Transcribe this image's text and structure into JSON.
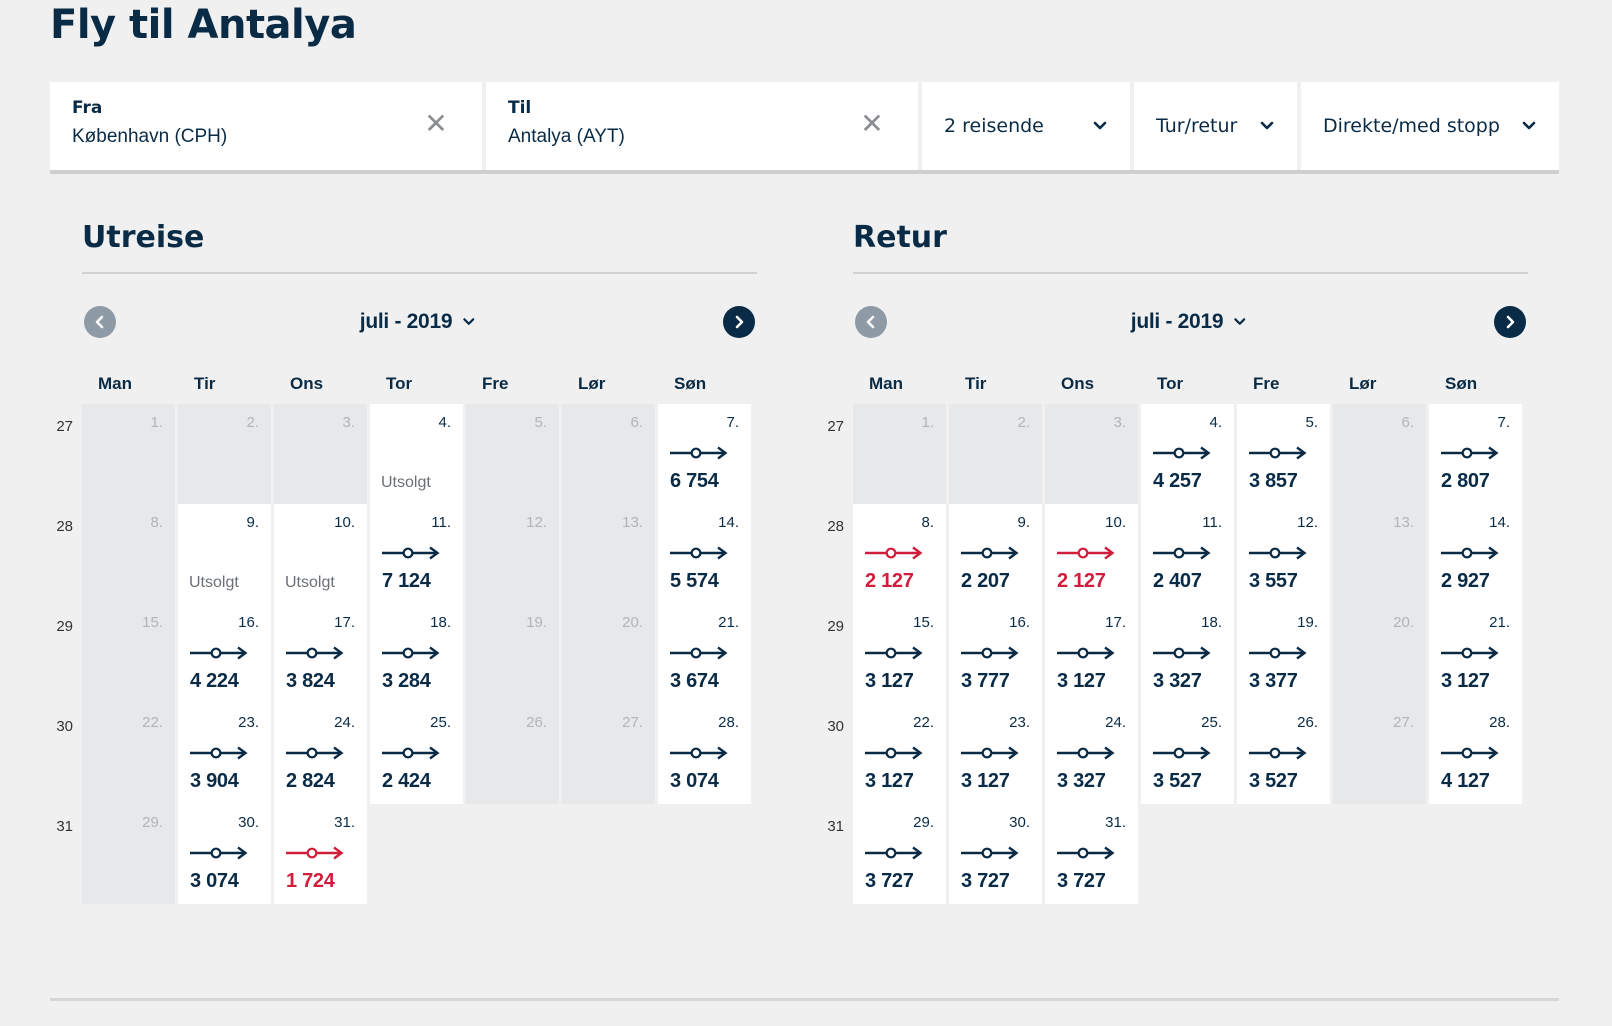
{
  "page": {
    "title": "Fly til Antalya"
  },
  "search": {
    "from": {
      "label": "Fra",
      "value": "København (CPH)"
    },
    "to": {
      "label": "Til",
      "value": "Antalya (AYT)"
    },
    "travellers": "2 reisende",
    "trip_type": "Tur/retur",
    "stops": "Direkte/med stopp"
  },
  "colors": {
    "navy": "#0a2b46",
    "cheapest": "#d21c3b",
    "unavailable": "#e7e8ea"
  },
  "icons": {
    "clear": "close-icon",
    "dropdown": "chevron-down-icon",
    "prev": "chevron-left-icon",
    "next": "chevron-right-icon",
    "flight": "flight-route-icon"
  },
  "weekdays": [
    "Man",
    "Tir",
    "Ons",
    "Tor",
    "Fre",
    "Lør",
    "Søn"
  ],
  "outbound": {
    "title": "Utreise",
    "month": "juli - 2019",
    "weeks": [
      {
        "week": "27",
        "days": [
          {
            "day": "1.",
            "status": "unavailable"
          },
          {
            "day": "2.",
            "status": "unavailable"
          },
          {
            "day": "3.",
            "status": "unavailable"
          },
          {
            "day": "4.",
            "status": "soldout",
            "label": "Utsolgt"
          },
          {
            "day": "5.",
            "status": "unavailable"
          },
          {
            "day": "6.",
            "status": "unavailable"
          },
          {
            "day": "7.",
            "status": "available",
            "price": "6 754"
          }
        ]
      },
      {
        "week": "28",
        "days": [
          {
            "day": "8.",
            "status": "unavailable"
          },
          {
            "day": "9.",
            "status": "soldout",
            "label": "Utsolgt"
          },
          {
            "day": "10.",
            "status": "soldout",
            "label": "Utsolgt"
          },
          {
            "day": "11.",
            "status": "available",
            "price": "7 124"
          },
          {
            "day": "12.",
            "status": "unavailable"
          },
          {
            "day": "13.",
            "status": "unavailable"
          },
          {
            "day": "14.",
            "status": "available",
            "price": "5 574"
          }
        ]
      },
      {
        "week": "29",
        "days": [
          {
            "day": "15.",
            "status": "unavailable"
          },
          {
            "day": "16.",
            "status": "available",
            "price": "4 224"
          },
          {
            "day": "17.",
            "status": "available",
            "price": "3 824"
          },
          {
            "day": "18.",
            "status": "available",
            "price": "3 284"
          },
          {
            "day": "19.",
            "status": "unavailable"
          },
          {
            "day": "20.",
            "status": "unavailable"
          },
          {
            "day": "21.",
            "status": "available",
            "price": "3 674"
          }
        ]
      },
      {
        "week": "30",
        "days": [
          {
            "day": "22.",
            "status": "unavailable"
          },
          {
            "day": "23.",
            "status": "available",
            "price": "3 904"
          },
          {
            "day": "24.",
            "status": "available",
            "price": "2 824"
          },
          {
            "day": "25.",
            "status": "available",
            "price": "2 424"
          },
          {
            "day": "26.",
            "status": "unavailable"
          },
          {
            "day": "27.",
            "status": "unavailable"
          },
          {
            "day": "28.",
            "status": "available",
            "price": "3 074"
          }
        ]
      },
      {
        "week": "31",
        "days": [
          {
            "day": "29.",
            "status": "unavailable"
          },
          {
            "day": "30.",
            "status": "available",
            "price": "3 074"
          },
          {
            "day": "31.",
            "status": "available",
            "price": "1 724",
            "cheapest": true
          },
          {
            "status": "empty"
          },
          {
            "status": "empty"
          },
          {
            "status": "empty"
          },
          {
            "status": "empty"
          }
        ]
      }
    ]
  },
  "return": {
    "title": "Retur",
    "month": "juli - 2019",
    "weeks": [
      {
        "week": "27",
        "days": [
          {
            "day": "1.",
            "status": "unavailable"
          },
          {
            "day": "2.",
            "status": "unavailable"
          },
          {
            "day": "3.",
            "status": "unavailable"
          },
          {
            "day": "4.",
            "status": "available",
            "price": "4 257"
          },
          {
            "day": "5.",
            "status": "available",
            "price": "3 857"
          },
          {
            "day": "6.",
            "status": "unavailable"
          },
          {
            "day": "7.",
            "status": "available",
            "price": "2 807"
          }
        ]
      },
      {
        "week": "28",
        "days": [
          {
            "day": "8.",
            "status": "available",
            "price": "2 127",
            "cheapest": true
          },
          {
            "day": "9.",
            "status": "available",
            "price": "2 207"
          },
          {
            "day": "10.",
            "status": "available",
            "price": "2 127",
            "cheapest": true
          },
          {
            "day": "11.",
            "status": "available",
            "price": "2 407"
          },
          {
            "day": "12.",
            "status": "available",
            "price": "3 557"
          },
          {
            "day": "13.",
            "status": "unavailable"
          },
          {
            "day": "14.",
            "status": "available",
            "price": "2 927"
          }
        ]
      },
      {
        "week": "29",
        "days": [
          {
            "day": "15.",
            "status": "available",
            "price": "3 127"
          },
          {
            "day": "16.",
            "status": "available",
            "price": "3 777"
          },
          {
            "day": "17.",
            "status": "available",
            "price": "3 127"
          },
          {
            "day": "18.",
            "status": "available",
            "price": "3 327"
          },
          {
            "day": "19.",
            "status": "available",
            "price": "3 377"
          },
          {
            "day": "20.",
            "status": "unavailable"
          },
          {
            "day": "21.",
            "status": "available",
            "price": "3 127"
          }
        ]
      },
      {
        "week": "30",
        "days": [
          {
            "day": "22.",
            "status": "available",
            "price": "3 127"
          },
          {
            "day": "23.",
            "status": "available",
            "price": "3 127"
          },
          {
            "day": "24.",
            "status": "available",
            "price": "3 327"
          },
          {
            "day": "25.",
            "status": "available",
            "price": "3 527"
          },
          {
            "day": "26.",
            "status": "available",
            "price": "3 527"
          },
          {
            "day": "27.",
            "status": "unavailable"
          },
          {
            "day": "28.",
            "status": "available",
            "price": "4 127"
          }
        ]
      },
      {
        "week": "31",
        "days": [
          {
            "day": "29.",
            "status": "available",
            "price": "3 727"
          },
          {
            "day": "30.",
            "status": "available",
            "price": "3 727"
          },
          {
            "day": "31.",
            "status": "available",
            "price": "3 727"
          },
          {
            "status": "empty"
          },
          {
            "status": "empty"
          },
          {
            "status": "empty"
          },
          {
            "status": "empty"
          }
        ]
      }
    ]
  }
}
